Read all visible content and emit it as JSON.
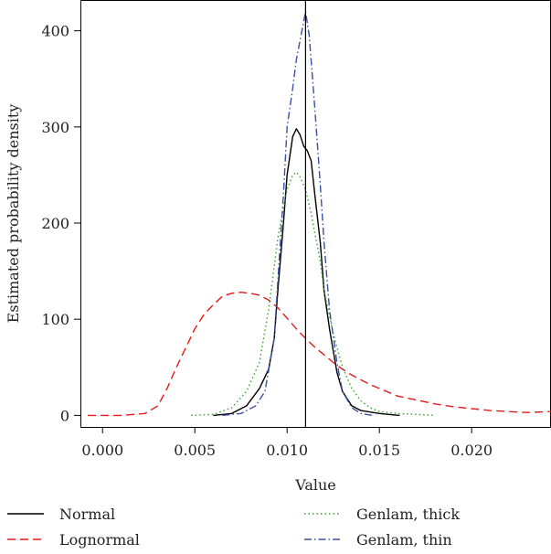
{
  "chart_data": {
    "type": "line",
    "title": "",
    "xlabel": "Value",
    "ylabel": "Estimated probability density",
    "xlim": [
      -0.0012,
      0.0243
    ],
    "ylim": [
      -12,
      432
    ],
    "xticks": [
      0.0,
      0.005,
      0.01,
      0.015,
      0.02
    ],
    "xtick_labels": [
      "0.000",
      "0.005",
      "0.010",
      "0.015",
      "0.020"
    ],
    "yticks": [
      0,
      100,
      200,
      300,
      400
    ],
    "ytick_labels": [
      "0",
      "100",
      "200",
      "300",
      "400"
    ],
    "vertical_line": 0.011,
    "grid": false,
    "legend_position": "bottom",
    "series": [
      {
        "name": "Normal",
        "color": "#000000",
        "dash": "solid",
        "x": [
          0.006,
          0.007,
          0.0078,
          0.0085,
          0.009,
          0.0093,
          0.0095,
          0.0098,
          0.01,
          0.0103,
          0.0105,
          0.0107,
          0.0109,
          0.0111,
          0.0113,
          0.0115,
          0.0118,
          0.012,
          0.0123,
          0.0127,
          0.013,
          0.0135,
          0.014,
          0.015,
          0.0161
        ],
        "y": [
          0,
          2,
          10,
          28,
          48,
          80,
          130,
          200,
          250,
          290,
          298,
          292,
          280,
          275,
          265,
          230,
          180,
          130,
          90,
          45,
          25,
          10,
          5,
          2,
          0
        ]
      },
      {
        "name": "Lognormal",
        "color": "#e31a1c",
        "dash": "long-dash",
        "x": [
          -0.0008,
          0.001,
          0.0023,
          0.003,
          0.0035,
          0.004,
          0.0045,
          0.005,
          0.0055,
          0.006,
          0.0065,
          0.007,
          0.0075,
          0.008,
          0.0085,
          0.009,
          0.0095,
          0.01,
          0.0105,
          0.011,
          0.0115,
          0.012,
          0.0125,
          0.013,
          0.0135,
          0.014,
          0.0145,
          0.015,
          0.016,
          0.017,
          0.018,
          0.019,
          0.02,
          0.021,
          0.022,
          0.023,
          0.0243
        ],
        "y": [
          0,
          0,
          2,
          10,
          28,
          50,
          70,
          90,
          105,
          115,
          124,
          127,
          128,
          127,
          125,
          120,
          112,
          101,
          90,
          80,
          71,
          63,
          55,
          48,
          42,
          37,
          32,
          28,
          20,
          16,
          12,
          9,
          7,
          5,
          4,
          3,
          4
        ]
      },
      {
        "name": "Genlam, thick",
        "color": "#33a02c",
        "dash": "dotted",
        "x": [
          0.0048,
          0.006,
          0.007,
          0.0078,
          0.0085,
          0.009,
          0.0095,
          0.01,
          0.0103,
          0.0105,
          0.0107,
          0.011,
          0.0113,
          0.0118,
          0.012,
          0.0125,
          0.013,
          0.0135,
          0.014,
          0.0145,
          0.015,
          0.016,
          0.017,
          0.018
        ],
        "y": [
          0,
          1,
          8,
          25,
          55,
          110,
          185,
          235,
          250,
          253,
          248,
          235,
          210,
          160,
          130,
          85,
          50,
          28,
          15,
          8,
          4,
          2,
          1,
          0
        ]
      },
      {
        "name": "Genlam, thin",
        "color": "#3a50a8",
        "dash": "dash-dot",
        "x": [
          0.0065,
          0.0075,
          0.0083,
          0.0088,
          0.0093,
          0.0095,
          0.0098,
          0.01,
          0.0103,
          0.0105,
          0.0108,
          0.011,
          0.0112,
          0.0115,
          0.0118,
          0.012,
          0.0123,
          0.0127,
          0.013,
          0.0135,
          0.014,
          0.0146
        ],
        "y": [
          0,
          2,
          10,
          25,
          80,
          140,
          230,
          300,
          340,
          370,
          400,
          420,
          395,
          320,
          240,
          180,
          110,
          55,
          25,
          8,
          2,
          0
        ]
      }
    ]
  }
}
